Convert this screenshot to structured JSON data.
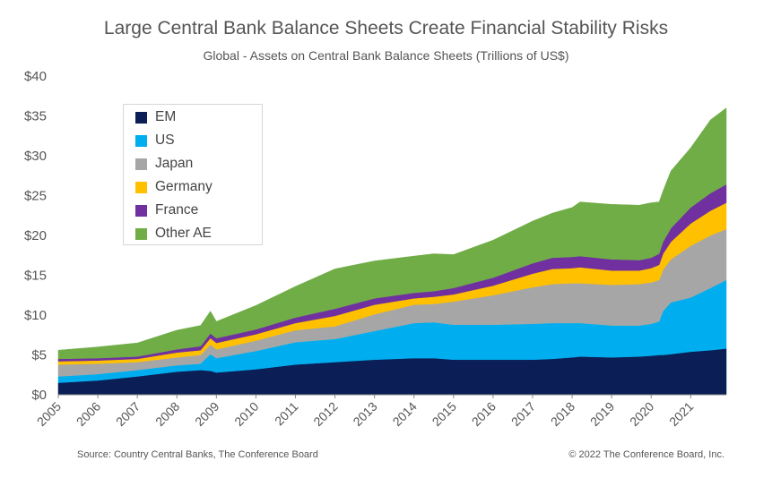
{
  "header": {
    "title": "Large Central Bank Balance Sheets Create Financial Stability Risks",
    "subtitle": "Global - Assets on Central Bank Balance Sheets (Trillions of US$)"
  },
  "footer": {
    "source": "Source: Country Central Banks, The Conference Board",
    "copyright": "© 2022 The Conference Board, Inc."
  },
  "chart_data": {
    "type": "area",
    "stacked": true,
    "title": "Large Central Bank Balance Sheets Create Financial Stability Risks",
    "subtitle": "Global - Assets on Central Bank Balance Sheets (Trillions of US$)",
    "xlabel": "",
    "ylabel": "",
    "ylim": [
      0,
      40
    ],
    "y_ticks": [
      0,
      5,
      10,
      15,
      20,
      25,
      30,
      35,
      40
    ],
    "y_tick_labels": [
      "$0",
      "$5",
      "$10",
      "$15",
      "$20",
      "$25",
      "$30",
      "$35",
      "$40"
    ],
    "x_tick_labels": [
      "2005",
      "2006",
      "2007",
      "2008",
      "2009",
      "2010",
      "2011",
      "2012",
      "2013",
      "2014",
      "2015",
      "2016",
      "2017",
      "2018",
      "2019",
      "2020",
      "2021"
    ],
    "grid": false,
    "legend_position": "top-left",
    "x": [
      2005.0,
      2006.0,
      2007.0,
      2008.0,
      2008.6,
      2008.85,
      2009.0,
      2010.0,
      2011.0,
      2012.0,
      2013.0,
      2014.0,
      2014.5,
      2015.0,
      2016.0,
      2017.0,
      2017.5,
      2018.0,
      2018.2,
      2019.0,
      2019.7,
      2020.0,
      2020.2,
      2020.3,
      2020.5,
      2021.0,
      2021.5,
      2021.9
    ],
    "series": [
      {
        "name": "EM",
        "color": "#0b1f56",
        "values": [
          1.5,
          1.8,
          2.3,
          2.9,
          3.1,
          3.0,
          2.8,
          3.2,
          3.8,
          4.1,
          4.4,
          4.6,
          4.6,
          4.4,
          4.4,
          4.4,
          4.5,
          4.7,
          4.8,
          4.7,
          4.8,
          4.9,
          5.0,
          5.0,
          5.1,
          5.4,
          5.6,
          5.8
        ]
      },
      {
        "name": "US",
        "color": "#00aeef",
        "values": [
          0.8,
          0.8,
          0.8,
          0.8,
          0.8,
          2.1,
          1.8,
          2.3,
          2.8,
          2.9,
          3.6,
          4.4,
          4.5,
          4.4,
          4.4,
          4.5,
          4.5,
          4.3,
          4.2,
          4.0,
          3.9,
          4.0,
          4.2,
          5.5,
          6.5,
          6.8,
          7.8,
          8.6
        ]
      },
      {
        "name": "Japan",
        "color": "#a6a6a6",
        "values": [
          1.5,
          1.3,
          1.0,
          1.0,
          1.1,
          1.2,
          1.1,
          1.3,
          1.5,
          1.6,
          2.1,
          2.3,
          2.3,
          2.9,
          3.7,
          4.6,
          4.9,
          5.0,
          5.0,
          5.1,
          5.2,
          5.2,
          5.2,
          5.2,
          5.4,
          6.5,
          6.6,
          6.4
        ]
      },
      {
        "name": "Germany",
        "color": "#ffc000",
        "values": [
          0.4,
          0.4,
          0.4,
          0.6,
          0.6,
          0.8,
          0.8,
          0.8,
          0.9,
          1.3,
          1.2,
          0.8,
          0.9,
          0.9,
          1.2,
          1.7,
          1.9,
          1.9,
          2.0,
          1.8,
          1.7,
          1.8,
          1.9,
          2.0,
          2.2,
          2.8,
          3.1,
          3.3
        ]
      },
      {
        "name": "France",
        "color": "#7030a0",
        "values": [
          0.3,
          0.3,
          0.3,
          0.4,
          0.5,
          0.6,
          0.6,
          0.6,
          0.7,
          0.9,
          0.8,
          0.7,
          0.7,
          0.8,
          1.0,
          1.3,
          1.4,
          1.4,
          1.4,
          1.4,
          1.3,
          1.3,
          1.4,
          1.5,
          1.7,
          2.0,
          2.2,
          2.3
        ]
      },
      {
        "name": "Other AE",
        "color": "#70ad47",
        "values": [
          1.1,
          1.4,
          1.7,
          2.4,
          2.6,
          2.8,
          2.1,
          3.0,
          3.9,
          5.0,
          4.7,
          4.6,
          4.7,
          4.2,
          4.7,
          5.3,
          5.6,
          6.2,
          6.8,
          6.9,
          6.9,
          6.9,
          6.5,
          6.4,
          7.2,
          7.5,
          9.2,
          9.6
        ]
      }
    ]
  }
}
